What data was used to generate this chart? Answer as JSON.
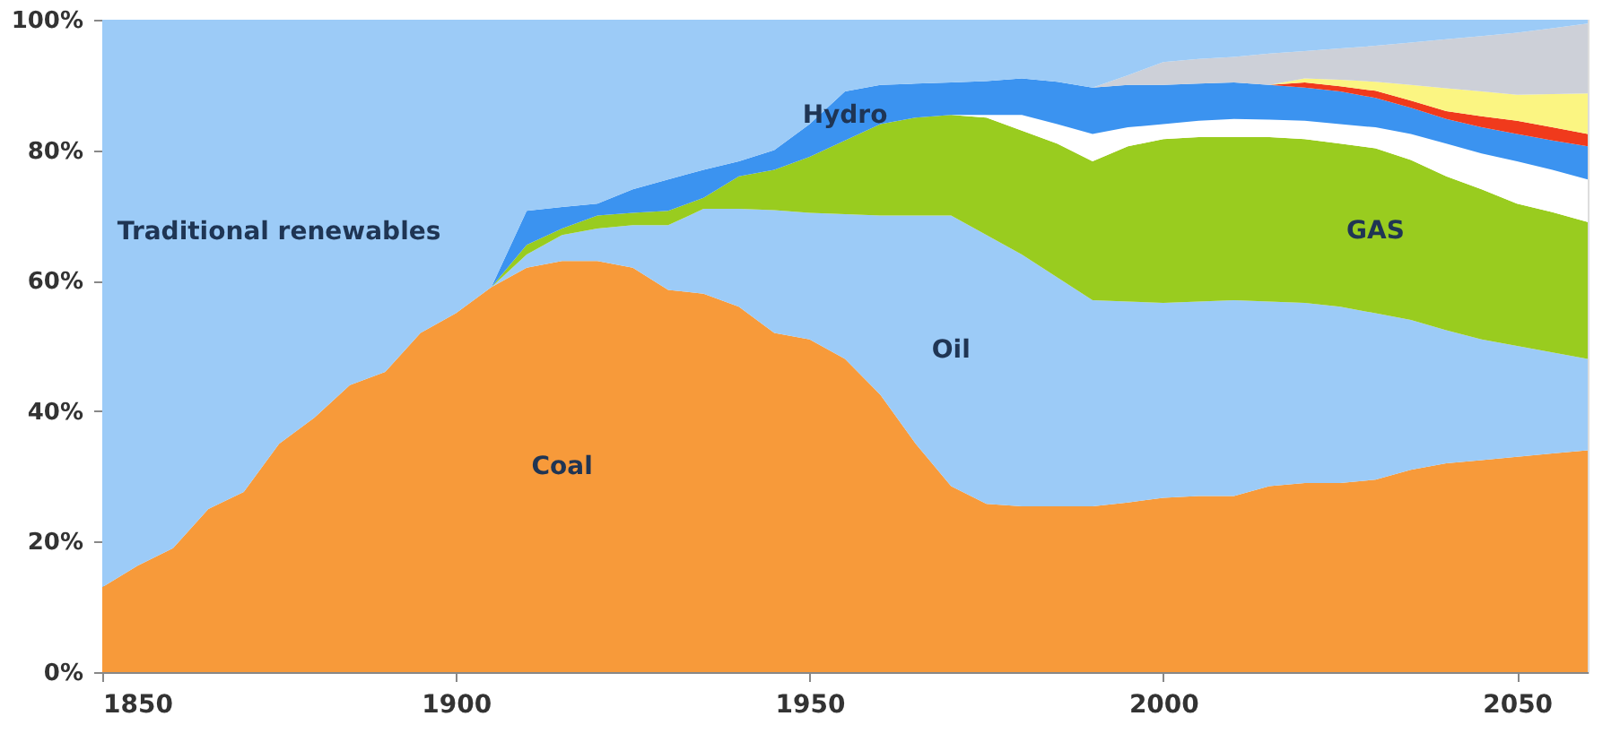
{
  "chart_data": {
    "type": "area",
    "stacked": true,
    "grid": false,
    "x": [
      1850,
      1855,
      1860,
      1865,
      1870,
      1875,
      1880,
      1885,
      1890,
      1895,
      1900,
      1905,
      1910,
      1915,
      1920,
      1925,
      1930,
      1935,
      1940,
      1945,
      1950,
      1955,
      1960,
      1965,
      1970,
      1975,
      1980,
      1985,
      1990,
      1995,
      2000,
      2005,
      2010,
      2015,
      2020,
      2025,
      2030,
      2035,
      2040,
      2045,
      2050,
      2055,
      2060
    ],
    "xlim": [
      1850,
      2060
    ],
    "xticks": [
      1850,
      1900,
      1950,
      2000,
      2050
    ],
    "ylim": [
      0,
      100
    ],
    "yticks": [
      {
        "value": 0,
        "label": "0%"
      },
      {
        "value": 20,
        "label": "20%"
      },
      {
        "value": 40,
        "label": "40%"
      },
      {
        "value": 60,
        "label": "60%"
      },
      {
        "value": 80,
        "label": "80%"
      },
      {
        "value": 100,
        "label": "100%"
      }
    ],
    "series": [
      {
        "name": "Coal",
        "color": "#f79a3a",
        "values": [
          13,
          16.3,
          19,
          25,
          27.6,
          35,
          39,
          44,
          46,
          52,
          55,
          59,
          62,
          63,
          63,
          62,
          58.6,
          58,
          56,
          52,
          51,
          48,
          42.5,
          35,
          28.5,
          25.8,
          25.4,
          25.4,
          25.4,
          26,
          26.7,
          27,
          27,
          28.5,
          29,
          29,
          29.5,
          31,
          32,
          32.5,
          33,
          33.5,
          34
        ]
      },
      {
        "name": "Oil",
        "color": "#9ccbf7",
        "values": [
          null,
          null,
          null,
          null,
          null,
          null,
          null,
          null,
          null,
          null,
          null,
          0,
          2,
          4,
          5,
          6.5,
          9.9,
          13,
          15,
          18.8,
          19.4,
          22.2,
          27.5,
          35,
          41.5,
          41.2,
          38.6,
          35.1,
          31.6,
          30.8,
          29.9,
          29.8,
          30,
          28.3,
          27.6,
          27,
          25.5,
          23,
          20.4,
          18.5,
          17,
          15.5,
          14
        ]
      },
      {
        "name": "GAS",
        "color": "#99cc1f",
        "values": [
          null,
          null,
          null,
          null,
          null,
          null,
          null,
          null,
          null,
          null,
          null,
          0,
          1.5,
          1,
          2,
          1.9,
          2.2,
          1.7,
          5,
          6.2,
          8.6,
          11.3,
          14,
          15,
          15.4,
          18,
          19,
          20.5,
          21.3,
          23.8,
          25.1,
          25.2,
          25,
          25.2,
          25.1,
          25,
          25.3,
          24.5,
          23.6,
          23,
          21.8,
          21.5,
          21
        ]
      },
      {
        "color": "#ffffff",
        "values": [
          null,
          null,
          null,
          null,
          null,
          null,
          null,
          null,
          null,
          null,
          null,
          null,
          null,
          null,
          null,
          null,
          null,
          null,
          null,
          null,
          null,
          null,
          null,
          null,
          0,
          0.4,
          2.4,
          3,
          4.2,
          2.9,
          2.3,
          2.5,
          2.8,
          2.7,
          2.8,
          3,
          3.2,
          4,
          5,
          5.5,
          6.5,
          6.5,
          6.5
        ]
      },
      {
        "name": "Hydro",
        "color": "#3b93f0",
        "values": [
          null,
          null,
          null,
          null,
          null,
          null,
          null,
          null,
          null,
          null,
          null,
          0,
          5.2,
          3.3,
          1.8,
          3.6,
          4.8,
          4.3,
          2.3,
          3,
          5,
          7.5,
          6,
          5.2,
          5,
          5.2,
          5.6,
          6.5,
          7.1,
          6.5,
          6,
          5.7,
          5.6,
          5.3,
          5.1,
          5,
          4.5,
          4,
          3.8,
          4,
          4.2,
          4.5,
          5.1
        ]
      },
      {
        "color": "#f03a1c",
        "values": [
          null,
          null,
          null,
          null,
          null,
          null,
          null,
          null,
          null,
          null,
          null,
          null,
          null,
          null,
          null,
          null,
          null,
          null,
          null,
          null,
          null,
          null,
          null,
          null,
          null,
          null,
          null,
          null,
          null,
          null,
          null,
          null,
          null,
          0,
          0.8,
          0.8,
          1.1,
          1.1,
          1.2,
          1.7,
          2,
          2,
          1.9
        ]
      },
      {
        "color": "#fbf582",
        "values": [
          null,
          null,
          null,
          null,
          null,
          null,
          null,
          null,
          null,
          null,
          null,
          null,
          null,
          null,
          null,
          null,
          null,
          null,
          null,
          null,
          null,
          null,
          null,
          null,
          null,
          null,
          null,
          null,
          null,
          null,
          null,
          null,
          null,
          0,
          0.6,
          1,
          1.4,
          2.4,
          3.5,
          3.8,
          4,
          5.1,
          6.2
        ]
      },
      {
        "color": "#cdd0d8",
        "values": [
          null,
          null,
          null,
          null,
          null,
          null,
          null,
          null,
          null,
          null,
          null,
          null,
          null,
          null,
          null,
          null,
          null,
          null,
          null,
          null,
          null,
          null,
          null,
          null,
          null,
          null,
          null,
          null,
          0,
          1.5,
          3.5,
          3.8,
          3.9,
          4.8,
          4.2,
          4.8,
          5.5,
          6.5,
          7.5,
          8.5,
          9.5,
          10.1,
          10.7
        ]
      },
      {
        "name": "Traditional renewables",
        "color": "#9ccbf7",
        "values": [
          87,
          83.7,
          81,
          75,
          72.4,
          65,
          61,
          56,
          54,
          48,
          45,
          41,
          29.3,
          28.7,
          28.2,
          26,
          24.5,
          23,
          21.7,
          20,
          16,
          11,
          10,
          9.8,
          9.6,
          9.4,
          9,
          9.5,
          10.4,
          8.5,
          6.5,
          6,
          5.7,
          5.2,
          4.8,
          4.4,
          4,
          3.5,
          3,
          2.5,
          2,
          1.3,
          0.6
        ]
      }
    ]
  }
}
